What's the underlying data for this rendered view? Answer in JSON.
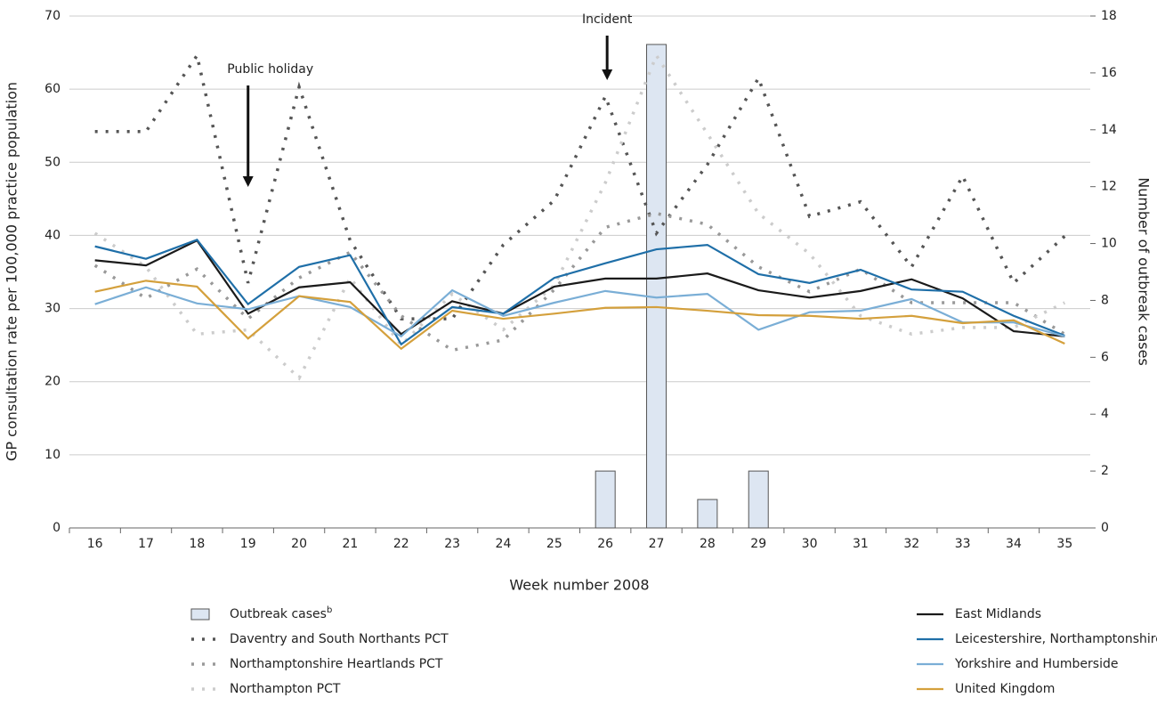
{
  "chart_data": {
    "type": "line",
    "y_label": "GP consultation rate per 100,000 practice population",
    "y2_label": "Number of outbreak cases",
    "x_label": "Week number 2008",
    "annotations": [
      "Public holiday",
      "Incident"
    ],
    "categories": [
      "16",
      "17",
      "18",
      "19",
      "20",
      "21",
      "22",
      "23",
      "24",
      "25",
      "26",
      "27",
      "28",
      "29",
      "30",
      "31",
      "32",
      "33",
      "34",
      "35"
    ],
    "ylim": [
      0,
      70
    ],
    "yticks": [
      0,
      10,
      20,
      30,
      40,
      50,
      60,
      70
    ],
    "y2lim": [
      0,
      18
    ],
    "y2ticks": [
      0,
      2,
      4,
      6,
      8,
      10,
      12,
      14,
      16,
      18
    ],
    "grid": true,
    "series": [
      {
        "name": "Outbreak cases",
        "name_marker": "b",
        "type": "bar",
        "axis": "y2",
        "color": "#dde6f2",
        "values": [
          null,
          null,
          null,
          null,
          null,
          null,
          null,
          null,
          null,
          null,
          2,
          17,
          1,
          2,
          null,
          null,
          null,
          null,
          null,
          null
        ]
      },
      {
        "name": "Daventry and South Northants PCT",
        "dash": "dotted",
        "color": "#555555",
        "values": [
          54.2,
          54.2,
          64.6,
          33.5,
          60.3,
          39.3,
          28.6,
          28.6,
          38.7,
          44.8,
          59,
          40.3,
          49.7,
          61.5,
          42.6,
          44.6,
          35.7,
          48.1,
          33.5,
          39.9
        ]
      },
      {
        "name": "Northamptonshire Heartlands PCT",
        "dash": "dotted",
        "color": "#999999",
        "values": [
          35.9,
          31.4,
          35.4,
          28.6,
          34.2,
          37.7,
          29,
          24.3,
          25.7,
          32.6,
          41.1,
          43,
          41.5,
          35.7,
          32.3,
          35.4,
          30.8,
          30.8,
          30.8,
          26.5
        ]
      },
      {
        "name": "Northampton PCT",
        "dash": "dotted",
        "color": "#cccccc",
        "values": [
          40.3,
          35.7,
          26.5,
          27.1,
          20.5,
          34.2,
          25,
          32,
          27.1,
          33.2,
          47.2,
          64.6,
          53.9,
          43,
          37.5,
          29,
          26.5,
          27.4,
          27.4,
          30.8
        ]
      },
      {
        "name": "East Midlands",
        "color": "#1a1a1a",
        "values": [
          36.6,
          35.9,
          39.3,
          29.3,
          32.9,
          33.6,
          26.5,
          31,
          29.3,
          33,
          34.1,
          34.1,
          34.8,
          32.5,
          31.5,
          32.4,
          34,
          31.4,
          26.9,
          26.2
        ]
      },
      {
        "name": "Leicestershire, Northamptonshire and Rutland SHA",
        "color": "#1f6fa8",
        "values": [
          38.5,
          36.8,
          39.4,
          30.6,
          35.7,
          37.3,
          25.1,
          30.2,
          29.3,
          34.2,
          36.2,
          38.1,
          38.7,
          34.7,
          33.5,
          35.3,
          32.6,
          32.3,
          29,
          26.3
        ]
      },
      {
        "name": "Yorkshire and Humberside",
        "color": "#7aaed6",
        "values": [
          30.6,
          32.9,
          30.7,
          29.9,
          31.7,
          30.2,
          26.2,
          32.5,
          29,
          30.8,
          32.4,
          31.5,
          32,
          27.1,
          29.5,
          29.7,
          31.3,
          28.1,
          28.1,
          26.2
        ]
      },
      {
        "name": "United Kingdom",
        "color": "#d4a03c",
        "values": [
          32.3,
          33.8,
          33,
          25.9,
          31.7,
          30.9,
          24.5,
          29.7,
          28.6,
          29.3,
          30.1,
          30.2,
          29.7,
          29.1,
          29,
          28.6,
          29,
          28,
          28.4,
          25.2
        ]
      }
    ]
  }
}
